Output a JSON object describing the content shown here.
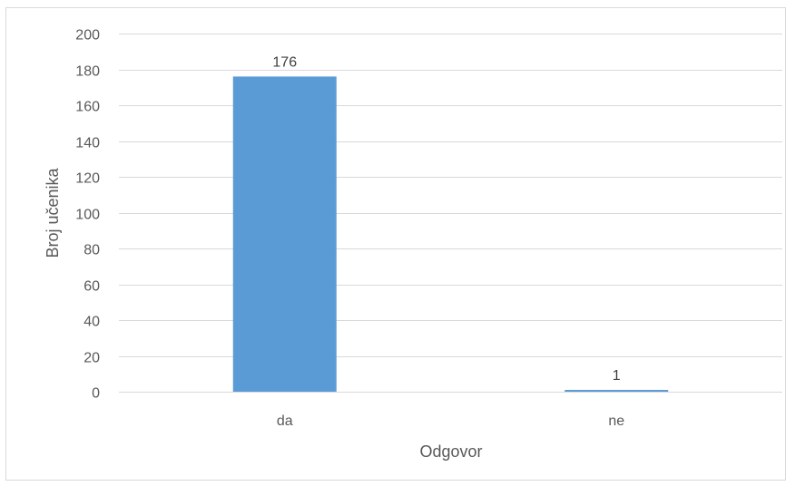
{
  "chart_data": {
    "type": "bar",
    "categories": [
      "da",
      "ne"
    ],
    "values": [
      176,
      1
    ],
    "data_labels": [
      "176",
      "1"
    ],
    "xlabel": "Odgovor",
    "ylabel": "Broj učenika",
    "ylim": [
      0,
      200
    ],
    "yticks": [
      0,
      20,
      40,
      60,
      80,
      100,
      120,
      140,
      160,
      180,
      200
    ],
    "ytick_labels": [
      "0",
      "20",
      "40",
      "60",
      "80",
      "100",
      "120",
      "140",
      "160",
      "180",
      "200"
    ],
    "grid": true,
    "legend": "none",
    "bar_color": "#5b9bd5",
    "grid_color": "#d9d9d9"
  }
}
